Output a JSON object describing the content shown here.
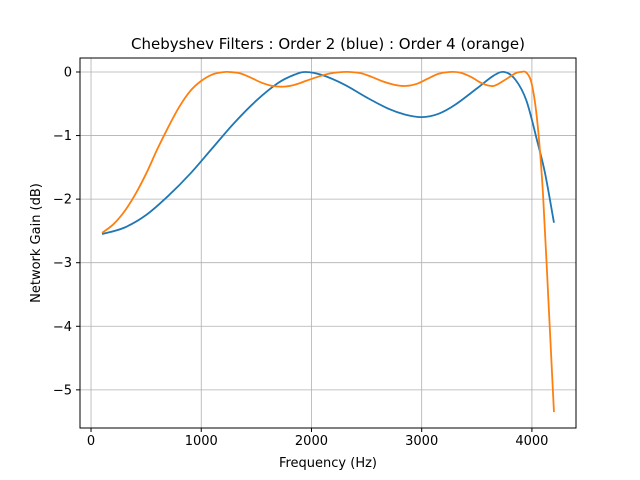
{
  "chart_data": {
    "type": "line",
    "title": "Chebyshev Filters : Order 2 (blue) : Order 4 (orange)",
    "xlabel": "Frequency (Hz)",
    "ylabel": "Network Gain (dB)",
    "xlim": [
      -100,
      4400
    ],
    "ylim": [
      -5.6,
      0.22
    ],
    "xticks": [
      0,
      1000,
      2000,
      3000,
      4000
    ],
    "yticks": [
      0,
      -1,
      -2,
      -3,
      -4,
      -5
    ],
    "xtick_labels": [
      "0",
      "1000",
      "2000",
      "3000",
      "4000"
    ],
    "ytick_labels": [
      "0",
      "−1",
      "−2",
      "−3",
      "−4",
      "−5"
    ],
    "grid": true,
    "series": [
      {
        "color": "#1f77b4",
        "x": [
          100,
          300,
          500,
          700,
          900,
          1100,
          1300,
          1500,
          1700,
          1850,
          1950,
          2100,
          2300,
          2500,
          2700,
          2850,
          3000,
          3150,
          3300,
          3500,
          3650,
          3750,
          3850,
          3950,
          4050,
          4120,
          4200
        ],
        "y": [
          -2.55,
          -2.45,
          -2.25,
          -1.95,
          -1.6,
          -1.2,
          -0.8,
          -0.45,
          -0.17,
          -0.04,
          0.0,
          -0.05,
          -0.2,
          -0.4,
          -0.58,
          -0.67,
          -0.71,
          -0.66,
          -0.52,
          -0.26,
          -0.06,
          0.0,
          -0.12,
          -0.45,
          -1.1,
          -1.6,
          -2.37
        ]
      },
      {
        "color": "#ff7f0e",
        "x": [
          100,
          200,
          300,
          400,
          500,
          600,
          700,
          800,
          900,
          1000,
          1100,
          1200,
          1250,
          1350,
          1450,
          1550,
          1650,
          1750,
          1850,
          1950,
          2050,
          2150,
          2250,
          2350,
          2450,
          2550,
          2650,
          2750,
          2850,
          2950,
          3050,
          3150,
          3250,
          3350,
          3450,
          3550,
          3650,
          3750,
          3850,
          3900,
          3950,
          4000,
          4050,
          4100,
          4150,
          4200
        ],
        "y": [
          -2.53,
          -2.4,
          -2.2,
          -1.93,
          -1.6,
          -1.22,
          -0.87,
          -0.55,
          -0.3,
          -0.14,
          -0.04,
          -0.002,
          0.0,
          -0.02,
          -0.09,
          -0.17,
          -0.22,
          -0.23,
          -0.2,
          -0.14,
          -0.08,
          -0.03,
          -0.004,
          0.0,
          -0.02,
          -0.08,
          -0.15,
          -0.2,
          -0.22,
          -0.19,
          -0.11,
          -0.03,
          0.0,
          -0.01,
          -0.08,
          -0.18,
          -0.22,
          -0.13,
          -0.02,
          0.0,
          -0.01,
          -0.2,
          -0.8,
          -1.9,
          -3.6,
          -5.35
        ]
      }
    ]
  }
}
